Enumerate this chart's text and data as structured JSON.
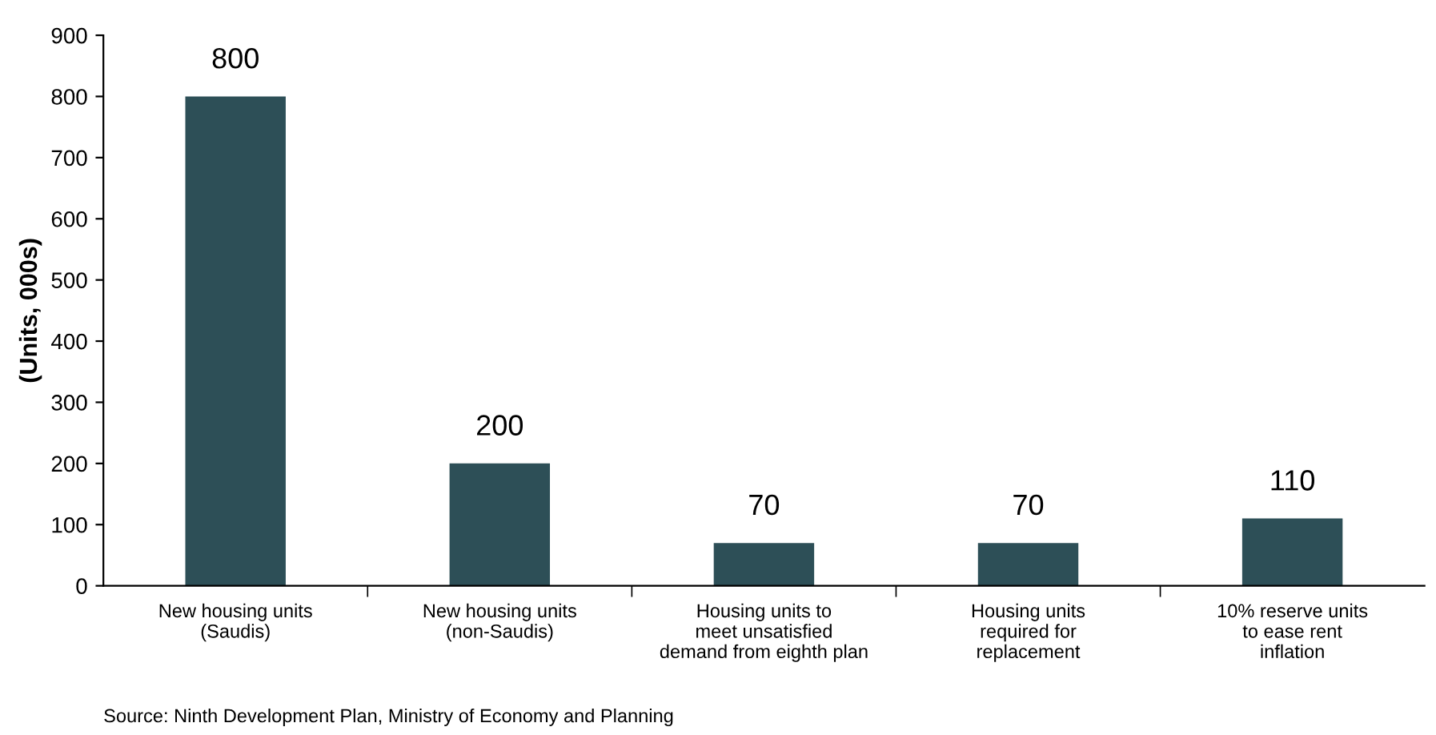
{
  "chart_data": {
    "type": "bar",
    "ylabel": "(Units, 000s)",
    "categories": [
      "New housing units\n(Saudis)",
      "New housing units\n(non-Saudis)",
      "Housing units to\nmeet unsatisfied\ndemand from eighth plan",
      "Housing units\nrequired for\nreplacement",
      "10% reserve units\nto ease rent\ninflation"
    ],
    "values": [
      800,
      200,
      70,
      70,
      110
    ],
    "color": "#2d4f57",
    "ylim": [
      0,
      900
    ],
    "yticks": [
      0,
      100,
      200,
      300,
      400,
      500,
      600,
      700,
      800,
      900
    ],
    "data_labels": true,
    "grid": false,
    "annotations": [
      "Source: Ninth Development Plan, Ministry of Economy and Planning"
    ]
  }
}
